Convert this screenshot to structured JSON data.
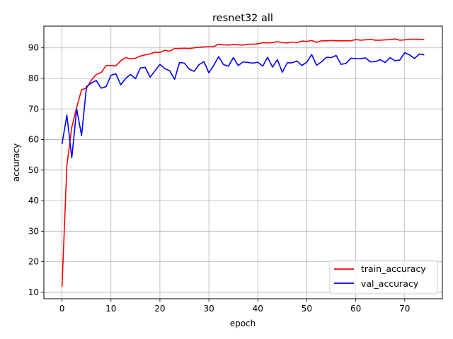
{
  "chart_data": {
    "type": "line",
    "title": "resnet32 all",
    "xlabel": "epoch",
    "ylabel": "accuracy",
    "xlim": [
      -3.7,
      77.7
    ],
    "ylim": [
      7.9,
      97.1
    ],
    "xticks": [
      0,
      10,
      20,
      30,
      40,
      50,
      60,
      70
    ],
    "yticks": [
      10,
      20,
      30,
      40,
      50,
      60,
      70,
      80,
      90
    ],
    "grid": true,
    "legend_position": "lower-right",
    "series": [
      {
        "name": "train_accuracy",
        "color": "#ff0000",
        "x": [
          0,
          1,
          2,
          3,
          4,
          5,
          6,
          7,
          8,
          9,
          10,
          11,
          12,
          13,
          14,
          15,
          16,
          17,
          18,
          19,
          20,
          21,
          22,
          23,
          24,
          25,
          26,
          27,
          28,
          29,
          30,
          31,
          32,
          33,
          34,
          35,
          36,
          37,
          38,
          39,
          40,
          41,
          42,
          43,
          44,
          45,
          46,
          47,
          48,
          49,
          50,
          51,
          52,
          53,
          54,
          55,
          56,
          57,
          58,
          59,
          60,
          61,
          62,
          63,
          64,
          65,
          66,
          67,
          68,
          69,
          70,
          71,
          72,
          73,
          74
        ],
        "y": [
          11.8,
          51.5,
          64,
          70.5,
          76.3,
          76.8,
          79.4,
          81.3,
          81.9,
          84.2,
          84.2,
          84.1,
          85.8,
          86.8,
          86.4,
          86.6,
          87.3,
          87.7,
          88,
          88.6,
          88.5,
          89.2,
          88.9,
          89.8,
          89.8,
          89.9,
          89.8,
          90,
          90.2,
          90.3,
          90.4,
          90.4,
          91.2,
          91,
          90.9,
          91.1,
          91,
          90.9,
          91.2,
          91.2,
          91.3,
          91.7,
          91.6,
          91.7,
          92,
          91.7,
          91.6,
          91.9,
          91.7,
          92.2,
          92.1,
          92.4,
          91.8,
          92.3,
          92.3,
          92.4,
          92.3,
          92.3,
          92.3,
          92.3,
          92.7,
          92.5,
          92.6,
          92.8,
          92.5,
          92.5,
          92.6,
          92.7,
          92.9,
          92.5,
          92.6,
          92.8,
          92.8,
          92.8,
          92.7
        ]
      },
      {
        "name": "val_accuracy",
        "color": "#0000ff",
        "x": [
          0,
          1,
          2,
          3,
          4,
          5,
          6,
          7,
          8,
          9,
          10,
          11,
          12,
          13,
          14,
          15,
          16,
          17,
          18,
          19,
          20,
          21,
          22,
          23,
          24,
          25,
          26,
          27,
          28,
          29,
          30,
          31,
          32,
          33,
          34,
          35,
          36,
          37,
          38,
          39,
          40,
          41,
          42,
          43,
          44,
          45,
          46,
          47,
          48,
          49,
          50,
          51,
          52,
          53,
          54,
          55,
          56,
          57,
          58,
          59,
          60,
          61,
          62,
          63,
          64,
          65,
          66,
          67,
          68,
          69,
          70,
          71,
          72,
          73,
          74
        ],
        "y": [
          58.5,
          68,
          54,
          70,
          61.3,
          77.3,
          78.5,
          79.3,
          76.8,
          77.3,
          81,
          81.5,
          77.9,
          80,
          81.3,
          79.9,
          83.4,
          83.6,
          80.4,
          82.5,
          84.6,
          83.2,
          82.5,
          79.7,
          85.2,
          85,
          83,
          82.3,
          84.5,
          85.5,
          81.8,
          84.3,
          87.1,
          84.5,
          84,
          86.8,
          84.2,
          85.4,
          85.2,
          85,
          85.3,
          84,
          86.9,
          83.7,
          86.1,
          82,
          85.1,
          85.1,
          85.7,
          84.2,
          85.3,
          87.8,
          84.3,
          85.4,
          86.9,
          86.8,
          87.5,
          84.6,
          84.9,
          86.6,
          86.5,
          86.5,
          86.7,
          85.4,
          85.5,
          86.1,
          85.2,
          86.8,
          85.8,
          86,
          88.4,
          87.7,
          86.5,
          88,
          87.7
        ]
      }
    ]
  }
}
